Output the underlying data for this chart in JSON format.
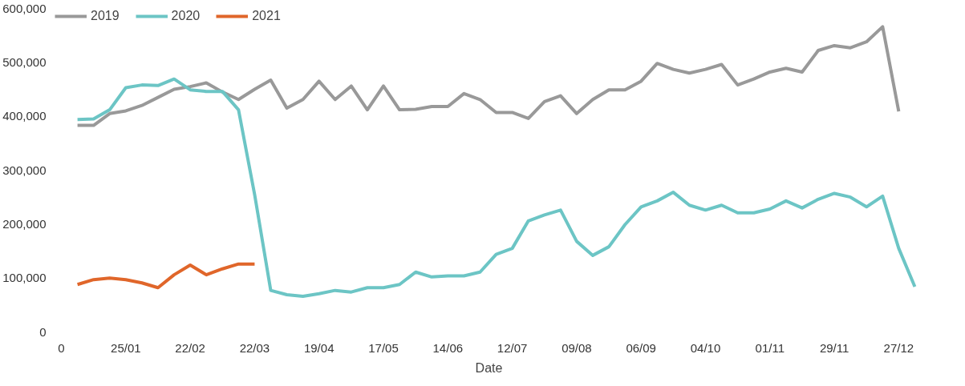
{
  "chart_data": {
    "type": "line",
    "xlabel": "Date",
    "categories": [
      "0",
      null,
      null,
      null,
      "25/01",
      null,
      null,
      null,
      "22/02",
      null,
      null,
      null,
      "22/03",
      null,
      null,
      null,
      "19/04",
      null,
      null,
      null,
      "17/05",
      null,
      null,
      null,
      "14/06",
      null,
      null,
      null,
      "12/07",
      null,
      null,
      null,
      "09/08",
      null,
      null,
      null,
      "06/09",
      null,
      null,
      null,
      "04/10",
      null,
      null,
      null,
      "01/11",
      null,
      null,
      null,
      "29/11",
      null,
      null,
      null,
      "27/12",
      null
    ],
    "ylim": [
      0,
      600000
    ],
    "yticks": [
      0,
      {
        "value": 100000,
        "label": "100,000"
      },
      {
        "value": 200000,
        "label": "200,000"
      },
      {
        "value": 300000,
        "label": "300,000"
      },
      {
        "value": 400000,
        "label": "400,000"
      },
      {
        "value": 500000,
        "label": "500,000"
      },
      {
        "value": 600000,
        "label": "600,000"
      }
    ],
    "grid": false,
    "legend": "top left",
    "marker": "none",
    "line_style": "solid",
    "series": [
      {
        "name": "2019",
        "color": "#999999",
        "values": [
          null,
          383000,
          383000,
          405000,
          410000,
          420000,
          435000,
          450000,
          455000,
          462000,
          445000,
          431000,
          450000,
          467000,
          415000,
          431000,
          465000,
          431000,
          456000,
          412000,
          456000,
          412000,
          413000,
          418000,
          418000,
          442000,
          431000,
          407000,
          407000,
          396000,
          427000,
          438000,
          405000,
          431000,
          449000,
          449000,
          465000,
          498000,
          487000,
          480000,
          487000,
          496000,
          458000,
          469000,
          482000,
          489000,
          482000,
          522000,
          531000,
          527000,
          538000,
          566000,
          409000,
          null
        ]
      },
      {
        "name": "2020",
        "color": "#6cc5c5",
        "values": [
          null,
          394000,
          395000,
          412000,
          453000,
          458000,
          457000,
          469000,
          449000,
          446000,
          446000,
          412000,
          255000,
          77000,
          69000,
          66000,
          71000,
          77000,
          74000,
          82000,
          82000,
          88000,
          111000,
          102000,
          104000,
          104000,
          111000,
          144000,
          155000,
          206000,
          217000,
          226000,
          168000,
          142000,
          158000,
          199000,
          232000,
          243000,
          259000,
          235000,
          226000,
          235000,
          221000,
          221000,
          228000,
          243000,
          230000,
          246000,
          257000,
          250000,
          232000,
          252000,
          155000,
          84000
        ]
      },
      {
        "name": "2021",
        "color": "#e0662a",
        "values": [
          null,
          88000,
          97000,
          100000,
          97000,
          91000,
          82000,
          106000,
          124000,
          106000,
          117000,
          126000,
          126000,
          null,
          null,
          null,
          null,
          null,
          null,
          null,
          null,
          null,
          null,
          null,
          null,
          null,
          null,
          null,
          null,
          null,
          null,
          null,
          null,
          null,
          null,
          null,
          null,
          null,
          null,
          null,
          null,
          null,
          null,
          null,
          null,
          null,
          null,
          null,
          null,
          null,
          null,
          null,
          null,
          null
        ]
      }
    ]
  }
}
